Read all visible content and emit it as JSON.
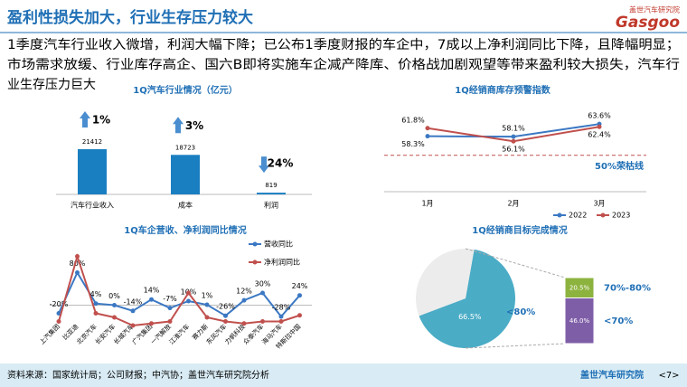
{
  "title": "盈利性损失加大，行业生存压力较大",
  "logo": {
    "top": "盖世汽车研究院",
    "main": "Gasgoo"
  },
  "body_lines": [
    "1季度汽车行业收入微增，利润大幅下降；已公布1季度财报的车企中，7成以上净利润同比下降，且降幅明显；",
    "市场需求放缓、行业库存高企、国六B即将实施车企减产降库、价格战加剧观望等带来盈利较大损失，汽车行",
    "业生存压力巨大"
  ],
  "footer": {
    "source": "资料来源：国家统计局；公司财报；中汽协；盖世汽车研究院分析",
    "brand": "盖世汽车研究院",
    "page": "<7>"
  },
  "chart_data": [
    {
      "type": "bar",
      "title": "1Q汽车行业情况（亿元）",
      "categories": [
        "汽车行业收入",
        "成本",
        "利润"
      ],
      "values": [
        21412,
        18723,
        819
      ],
      "color": "#1a7fc1",
      "changes": [
        "1%",
        "3%",
        "24%"
      ],
      "change_direction": [
        "up",
        "up",
        "down"
      ]
    },
    {
      "type": "line",
      "title": "1Q经销商库存预警指数",
      "categories": [
        "1月",
        "2月",
        "3月"
      ],
      "ylim": [
        44,
        68
      ],
      "series": [
        {
          "name": "2022",
          "color": "#3b78c3",
          "values": [
            58.3,
            58.1,
            63.6
          ],
          "value_labels": [
            "58.3%",
            "58.1%",
            "63.6%"
          ]
        },
        {
          "name": "2023",
          "color": "#c0504d",
          "values": [
            61.8,
            56.1,
            62.4
          ],
          "value_labels": [
            "61.8%",
            "56.1%",
            "62.4%"
          ]
        }
      ],
      "reference": {
        "value": 50,
        "label": "50%荣枯线",
        "color": "#c0504d"
      }
    },
    {
      "type": "line",
      "title": "1Q车企营收、净利润同比情况",
      "categories": [
        "上汽集团",
        "比亚迪",
        "北京汽车",
        "长安汽车",
        "长城汽车",
        "广汽集团",
        "一汽解放",
        "江淮汽车",
        "赛力斯",
        "东风汽车",
        "力帆科技",
        "众泰汽车",
        "海马汽车",
        "特斯拉中国"
      ],
      "ylim": [
        -50,
        150
      ],
      "series": [
        {
          "name": "营收同比",
          "color": "#3b78c3",
          "values": [
            -20,
            80,
            4,
            0,
            -14,
            14,
            -7,
            10,
            1,
            -26,
            12,
            30,
            -28,
            24
          ],
          "value_labels": [
            "-20%",
            "80%",
            "4%",
            "0%",
            "-14%",
            "14%",
            "-7%",
            "10%",
            "1%",
            "-26%",
            "12%",
            "30%",
            "-28%",
            "24%"
          ]
        },
        {
          "name": "净利润同比",
          "color": "#c0504d",
          "values": [
            -40,
            120,
            -20,
            -30,
            -50,
            -45,
            -40,
            30,
            -30,
            -40,
            -45,
            -40,
            -40,
            -25
          ]
        }
      ]
    },
    {
      "type": "pie",
      "title": "1Q经销商目标完成情况",
      "categories": [
        "<80%",
        null
      ],
      "values": [
        66.5,
        33.5
      ],
      "value_labels": [
        "66.5%",
        null
      ],
      "colors": [
        "#4bacc6",
        "#ececec"
      ],
      "breakdown": {
        "categories": [
          "70%-80%",
          "<70%"
        ],
        "values": [
          20.5,
          46.0
        ],
        "value_labels": [
          "20.5%",
          "46.0%"
        ],
        "colors": [
          "#8db33f",
          "#7f5ea8"
        ]
      }
    }
  ]
}
